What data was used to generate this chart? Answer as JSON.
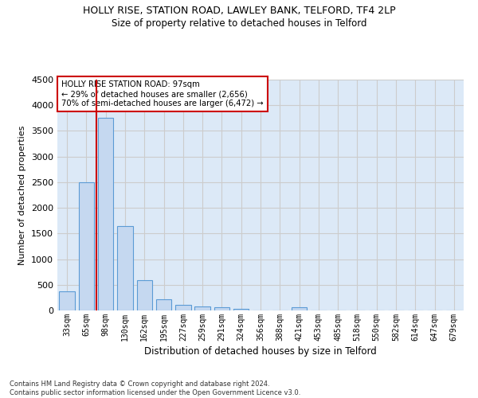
{
  "title": "HOLLY RISE, STATION ROAD, LAWLEY BANK, TELFORD, TF4 2LP",
  "subtitle": "Size of property relative to detached houses in Telford",
  "xlabel": "Distribution of detached houses by size in Telford",
  "ylabel": "Number of detached properties",
  "categories": [
    "33sqm",
    "65sqm",
    "98sqm",
    "130sqm",
    "162sqm",
    "195sqm",
    "227sqm",
    "259sqm",
    "291sqm",
    "324sqm",
    "356sqm",
    "388sqm",
    "421sqm",
    "453sqm",
    "485sqm",
    "518sqm",
    "550sqm",
    "582sqm",
    "614sqm",
    "647sqm",
    "679sqm"
  ],
  "values": [
    370,
    2500,
    3750,
    1640,
    590,
    225,
    110,
    70,
    55,
    35,
    0,
    0,
    55,
    0,
    0,
    0,
    0,
    0,
    0,
    0,
    0
  ],
  "bar_color": "#c5d8f0",
  "bar_edge_color": "#5b9bd5",
  "vline_color": "#cc0000",
  "annotation_text": "HOLLY RISE STATION ROAD: 97sqm\n← 29% of detached houses are smaller (2,656)\n70% of semi-detached houses are larger (6,472) →",
  "annotation_box_color": "#ffffff",
  "annotation_box_edge": "#cc0000",
  "ylim": [
    0,
    4500
  ],
  "yticks": [
    0,
    500,
    1000,
    1500,
    2000,
    2500,
    3000,
    3500,
    4000,
    4500
  ],
  "grid_color": "#cccccc",
  "bg_color": "#dce9f7",
  "footer": "Contains HM Land Registry data © Crown copyright and database right 2024.\nContains public sector information licensed under the Open Government Licence v3.0.",
  "title_fontsize": 9,
  "subtitle_fontsize": 8.5,
  "xlabel_fontsize": 8.5,
  "ylabel_fontsize": 8
}
